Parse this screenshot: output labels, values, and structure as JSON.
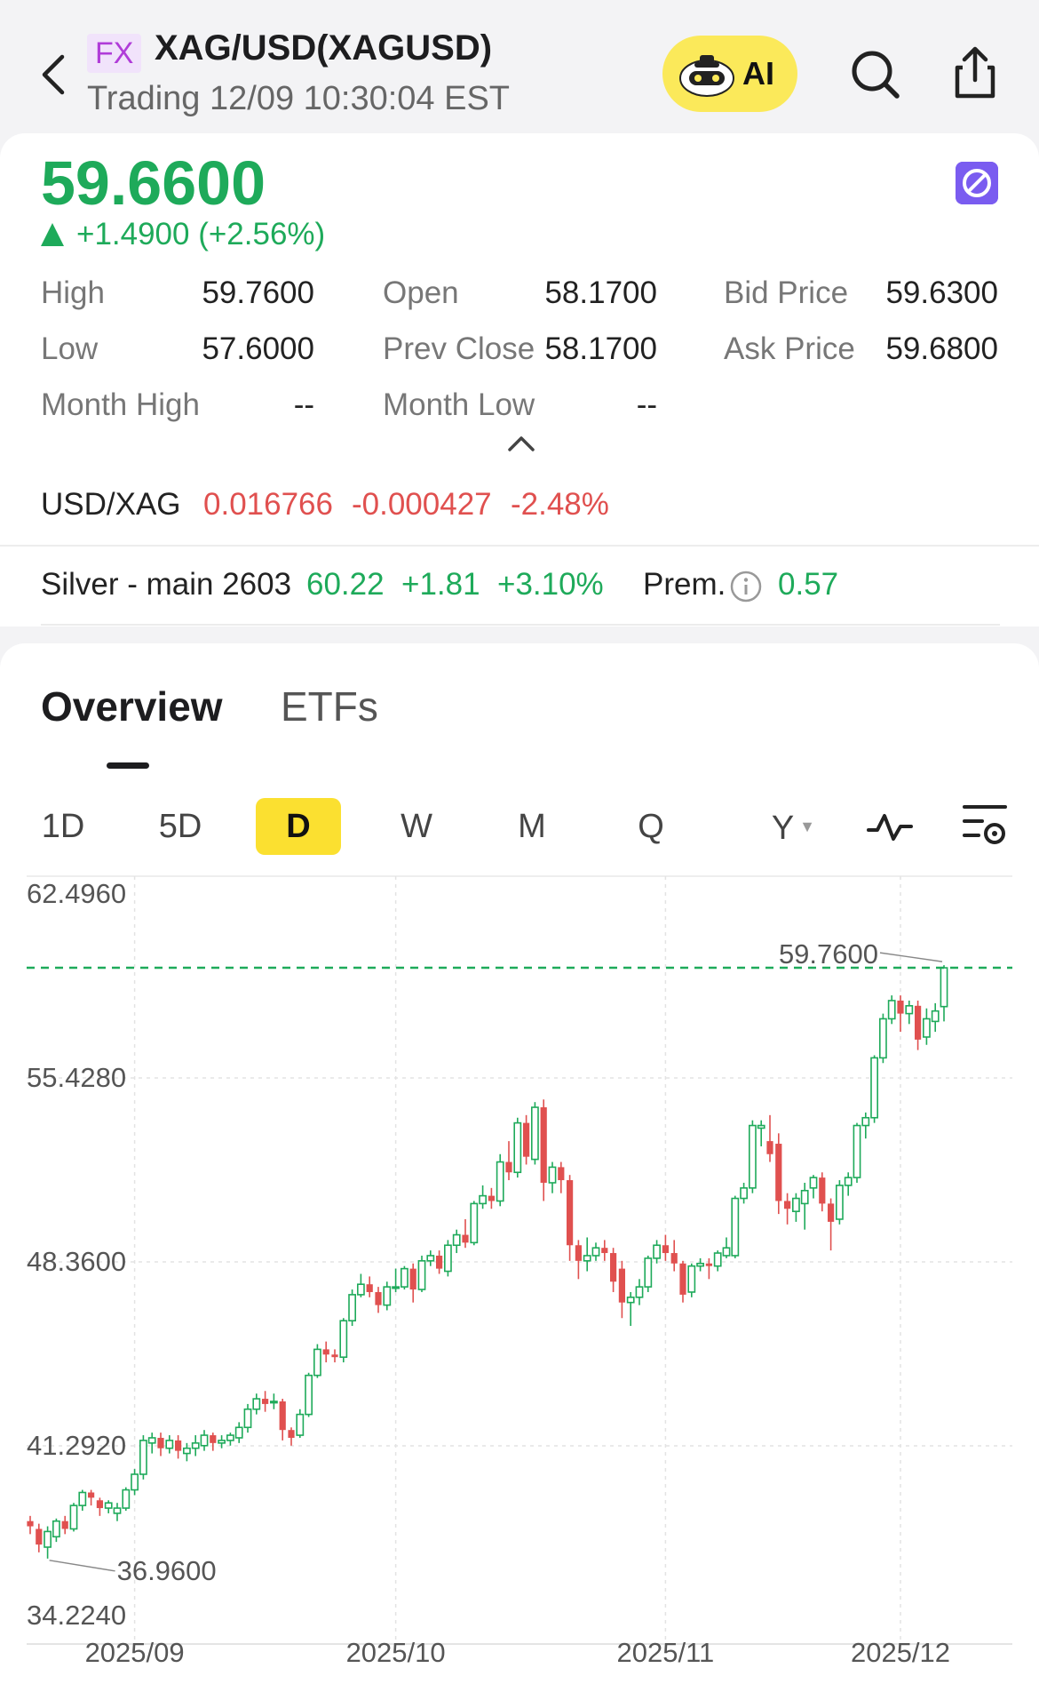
{
  "header": {
    "badge": "FX",
    "title": "XAG/USD(XAGUSD)",
    "subtitle": "Trading 12/09 10:30:04 EST",
    "ai_label": "AI",
    "icons": [
      "back-icon",
      "robot-icon",
      "search-icon",
      "share-icon"
    ]
  },
  "quote": {
    "price": "59.6600",
    "change": "+1.4900 (+2.56%)",
    "stats": [
      {
        "label": "High",
        "value": "59.7600"
      },
      {
        "label": "Open",
        "value": "58.1700"
      },
      {
        "label": "Bid Price",
        "value": "59.6300"
      },
      {
        "label": "Low",
        "value": "57.6000"
      },
      {
        "label": "Prev Close",
        "value": "58.1700"
      },
      {
        "label": "Ask Price",
        "value": "59.6800"
      },
      {
        "label": "Month High",
        "value": "--"
      },
      {
        "label": "Month Low",
        "value": "--"
      }
    ],
    "cross": {
      "label": "USD/XAG",
      "price": "0.016766",
      "change": "-0.000427",
      "pct": "-2.48%"
    },
    "futures": {
      "name": "Silver - main 2603",
      "price": "60.22",
      "change": "+1.81",
      "pct": "+3.10%",
      "prem_label": "Prem.",
      "prem_value": "0.57"
    }
  },
  "tabs": {
    "overview": "Overview",
    "etfs": "ETFs",
    "active": "Overview"
  },
  "periods": {
    "items": [
      "1D",
      "5D",
      "D",
      "W",
      "M",
      "Q",
      "Y"
    ],
    "active": "D"
  },
  "colors": {
    "up": "#1eaa5a",
    "down": "#e0504f",
    "accent": "#fbe030",
    "badge": "#b03cd8"
  },
  "chart_data": {
    "type": "candlestick",
    "y_ticks": [
      "62.4960",
      "55.4280",
      "48.3600",
      "41.2920",
      "34.2240"
    ],
    "y_tick_values": [
      62.496,
      55.428,
      48.36,
      41.292,
      34.224
    ],
    "ylim": [
      34.224,
      62.496
    ],
    "x_ticks": [
      "2025/09",
      "2025/10",
      "2025/11",
      "2025/12"
    ],
    "x_tick_index": [
      12,
      42,
      73,
      100
    ],
    "high_label": "59.7600",
    "low_label": "36.9600",
    "high": 59.76,
    "low": 36.96,
    "reference_line": 59.66,
    "grid": true,
    "candles": [
      {
        "o": 38.4,
        "c": 38.2,
        "h": 38.6,
        "l": 37.9
      },
      {
        "o": 38.1,
        "c": 37.5,
        "h": 38.3,
        "l": 37.2
      },
      {
        "o": 37.4,
        "c": 38.0,
        "h": 38.2,
        "l": 36.96
      },
      {
        "o": 37.8,
        "c": 38.4,
        "h": 38.5,
        "l": 37.6
      },
      {
        "o": 38.4,
        "c": 38.1,
        "h": 38.6,
        "l": 37.9
      },
      {
        "o": 38.1,
        "c": 39.0,
        "h": 39.1,
        "l": 38.0
      },
      {
        "o": 39.0,
        "c": 39.5,
        "h": 39.6,
        "l": 38.8
      },
      {
        "o": 39.5,
        "c": 39.3,
        "h": 39.6,
        "l": 39.0
      },
      {
        "o": 39.2,
        "c": 38.9,
        "h": 39.3,
        "l": 38.6
      },
      {
        "o": 38.9,
        "c": 39.1,
        "h": 39.2,
        "l": 38.7
      },
      {
        "o": 38.7,
        "c": 38.9,
        "h": 39.1,
        "l": 38.4
      },
      {
        "o": 38.9,
        "c": 39.6,
        "h": 39.7,
        "l": 38.8
      },
      {
        "o": 39.6,
        "c": 40.2,
        "h": 40.4,
        "l": 39.4
      },
      {
        "o": 40.2,
        "c": 41.5,
        "h": 41.7,
        "l": 40.0
      },
      {
        "o": 41.4,
        "c": 41.6,
        "h": 41.8,
        "l": 41.0
      },
      {
        "o": 41.6,
        "c": 41.2,
        "h": 41.8,
        "l": 40.9
      },
      {
        "o": 41.2,
        "c": 41.5,
        "h": 41.7,
        "l": 41.0
      },
      {
        "o": 41.5,
        "c": 41.1,
        "h": 41.7,
        "l": 40.8
      },
      {
        "o": 41.0,
        "c": 41.2,
        "h": 41.4,
        "l": 40.7
      },
      {
        "o": 41.2,
        "c": 41.4,
        "h": 41.7,
        "l": 40.9
      },
      {
        "o": 41.3,
        "c": 41.7,
        "h": 41.9,
        "l": 41.1
      },
      {
        "o": 41.7,
        "c": 41.4,
        "h": 41.8,
        "l": 41.1
      },
      {
        "o": 41.4,
        "c": 41.5,
        "h": 41.7,
        "l": 41.2
      },
      {
        "o": 41.5,
        "c": 41.7,
        "h": 41.8,
        "l": 41.3
      },
      {
        "o": 41.6,
        "c": 42.0,
        "h": 42.2,
        "l": 41.4
      },
      {
        "o": 42.0,
        "c": 42.7,
        "h": 42.9,
        "l": 41.8
      },
      {
        "o": 42.7,
        "c": 43.1,
        "h": 43.3,
        "l": 42.5
      },
      {
        "o": 43.1,
        "c": 42.9,
        "h": 43.4,
        "l": 42.6
      },
      {
        "o": 43.0,
        "c": 43.0,
        "h": 43.3,
        "l": 42.7
      },
      {
        "o": 43.0,
        "c": 41.9,
        "h": 43.1,
        "l": 41.5
      },
      {
        "o": 41.9,
        "c": 41.6,
        "h": 42.0,
        "l": 41.3
      },
      {
        "o": 41.7,
        "c": 42.5,
        "h": 42.7,
        "l": 41.6
      },
      {
        "o": 42.5,
        "c": 44.0,
        "h": 44.1,
        "l": 42.4
      },
      {
        "o": 44.0,
        "c": 45.0,
        "h": 45.2,
        "l": 43.9
      },
      {
        "o": 45.0,
        "c": 44.8,
        "h": 45.3,
        "l": 44.5
      },
      {
        "o": 44.8,
        "c": 44.7,
        "h": 45.0,
        "l": 44.5
      },
      {
        "o": 44.7,
        "c": 46.1,
        "h": 46.2,
        "l": 44.5
      },
      {
        "o": 46.1,
        "c": 47.1,
        "h": 47.3,
        "l": 45.9
      },
      {
        "o": 47.1,
        "c": 47.5,
        "h": 47.9,
        "l": 47.0
      },
      {
        "o": 47.5,
        "c": 47.2,
        "h": 47.8,
        "l": 47.0
      },
      {
        "o": 47.2,
        "c": 46.7,
        "h": 47.4,
        "l": 46.4
      },
      {
        "o": 46.7,
        "c": 47.4,
        "h": 47.6,
        "l": 46.5
      },
      {
        "o": 47.4,
        "c": 47.4,
        "h": 48.1,
        "l": 47.2
      },
      {
        "o": 47.4,
        "c": 48.1,
        "h": 48.2,
        "l": 47.3
      },
      {
        "o": 48.1,
        "c": 47.3,
        "h": 48.3,
        "l": 46.8
      },
      {
        "o": 47.3,
        "c": 48.4,
        "h": 48.6,
        "l": 47.2
      },
      {
        "o": 48.4,
        "c": 48.6,
        "h": 48.8,
        "l": 48.2
      },
      {
        "o": 48.6,
        "c": 48.1,
        "h": 48.8,
        "l": 47.9
      },
      {
        "o": 48.0,
        "c": 49.0,
        "h": 49.2,
        "l": 47.8
      },
      {
        "o": 49.0,
        "c": 49.4,
        "h": 49.6,
        "l": 48.7
      },
      {
        "o": 49.4,
        "c": 49.1,
        "h": 50.0,
        "l": 48.9
      },
      {
        "o": 49.1,
        "c": 50.6,
        "h": 50.7,
        "l": 49.0
      },
      {
        "o": 50.6,
        "c": 50.9,
        "h": 51.3,
        "l": 50.4
      },
      {
        "o": 50.9,
        "c": 50.7,
        "h": 51.2,
        "l": 50.4
      },
      {
        "o": 50.7,
        "c": 52.2,
        "h": 52.5,
        "l": 50.5
      },
      {
        "o": 52.2,
        "c": 51.8,
        "h": 53.0,
        "l": 51.5
      },
      {
        "o": 51.8,
        "c": 53.7,
        "h": 53.9,
        "l": 51.6
      },
      {
        "o": 53.7,
        "c": 52.4,
        "h": 54.0,
        "l": 52.1
      },
      {
        "o": 52.3,
        "c": 54.3,
        "h": 54.5,
        "l": 52.1
      },
      {
        "o": 54.3,
        "c": 51.4,
        "h": 54.6,
        "l": 50.7
      },
      {
        "o": 51.4,
        "c": 52.0,
        "h": 52.2,
        "l": 51.0
      },
      {
        "o": 52.0,
        "c": 51.5,
        "h": 52.2,
        "l": 51.0
      },
      {
        "o": 51.5,
        "c": 49.0,
        "h": 51.7,
        "l": 48.4
      },
      {
        "o": 49.0,
        "c": 48.4,
        "h": 49.2,
        "l": 47.7
      },
      {
        "o": 48.4,
        "c": 48.6,
        "h": 49.3,
        "l": 48.0
      },
      {
        "o": 48.6,
        "c": 48.9,
        "h": 49.1,
        "l": 48.4
      },
      {
        "o": 48.9,
        "c": 48.7,
        "h": 49.2,
        "l": 48.4
      },
      {
        "o": 48.7,
        "c": 47.6,
        "h": 48.9,
        "l": 47.2
      },
      {
        "o": 48.1,
        "c": 46.8,
        "h": 48.4,
        "l": 46.2
      },
      {
        "o": 46.8,
        "c": 47.0,
        "h": 47.2,
        "l": 45.9
      },
      {
        "o": 47.0,
        "c": 47.4,
        "h": 47.7,
        "l": 46.7
      },
      {
        "o": 47.4,
        "c": 48.5,
        "h": 48.6,
        "l": 47.2
      },
      {
        "o": 48.5,
        "c": 49.0,
        "h": 49.2,
        "l": 48.3
      },
      {
        "o": 49.0,
        "c": 48.7,
        "h": 49.4,
        "l": 48.4
      },
      {
        "o": 48.7,
        "c": 48.3,
        "h": 49.2,
        "l": 48.0
      },
      {
        "o": 48.3,
        "c": 47.1,
        "h": 48.4,
        "l": 46.8
      },
      {
        "o": 47.2,
        "c": 48.2,
        "h": 48.3,
        "l": 47.0
      },
      {
        "o": 48.2,
        "c": 48.3,
        "h": 48.5,
        "l": 48.0
      },
      {
        "o": 48.3,
        "c": 48.2,
        "h": 48.5,
        "l": 47.7
      },
      {
        "o": 48.2,
        "c": 48.7,
        "h": 48.8,
        "l": 48.0
      },
      {
        "o": 48.6,
        "c": 48.9,
        "h": 49.3,
        "l": 48.5
      },
      {
        "o": 48.6,
        "c": 50.8,
        "h": 50.9,
        "l": 48.5
      },
      {
        "o": 50.8,
        "c": 51.2,
        "h": 51.4,
        "l": 50.6
      },
      {
        "o": 51.2,
        "c": 53.6,
        "h": 53.8,
        "l": 51.0
      },
      {
        "o": 53.5,
        "c": 53.6,
        "h": 53.8,
        "l": 52.8
      },
      {
        "o": 53.0,
        "c": 52.5,
        "h": 54.0,
        "l": 52.2
      },
      {
        "o": 52.9,
        "c": 50.7,
        "h": 53.3,
        "l": 50.2
      },
      {
        "o": 50.7,
        "c": 50.4,
        "h": 51.0,
        "l": 49.8
      },
      {
        "o": 50.3,
        "c": 50.8,
        "h": 51.0,
        "l": 49.9
      },
      {
        "o": 50.6,
        "c": 51.1,
        "h": 51.4,
        "l": 49.6
      },
      {
        "o": 51.2,
        "c": 51.6,
        "h": 51.7,
        "l": 50.8
      },
      {
        "o": 51.6,
        "c": 50.6,
        "h": 51.8,
        "l": 50.3
      },
      {
        "o": 50.6,
        "c": 49.9,
        "h": 50.8,
        "l": 48.8
      },
      {
        "o": 50.0,
        "c": 51.3,
        "h": 51.5,
        "l": 49.8
      },
      {
        "o": 51.3,
        "c": 51.6,
        "h": 51.8,
        "l": 50.9
      },
      {
        "o": 51.6,
        "c": 53.6,
        "h": 53.7,
        "l": 51.4
      },
      {
        "o": 53.6,
        "c": 53.9,
        "h": 54.1,
        "l": 53.1
      },
      {
        "o": 53.9,
        "c": 56.2,
        "h": 56.3,
        "l": 53.7
      },
      {
        "o": 56.2,
        "c": 57.7,
        "h": 57.9,
        "l": 56.0
      },
      {
        "o": 57.7,
        "c": 58.4,
        "h": 58.6,
        "l": 57.5
      },
      {
        "o": 58.4,
        "c": 57.9,
        "h": 58.6,
        "l": 57.2
      },
      {
        "o": 57.9,
        "c": 58.2,
        "h": 58.4,
        "l": 57.5
      },
      {
        "o": 58.2,
        "c": 56.9,
        "h": 58.4,
        "l": 56.5
      },
      {
        "o": 57.0,
        "c": 57.7,
        "h": 58.1,
        "l": 56.7
      },
      {
        "o": 57.6,
        "c": 58.0,
        "h": 58.3,
        "l": 57.2
      },
      {
        "o": 58.17,
        "c": 59.66,
        "h": 59.76,
        "l": 57.6
      }
    ]
  }
}
